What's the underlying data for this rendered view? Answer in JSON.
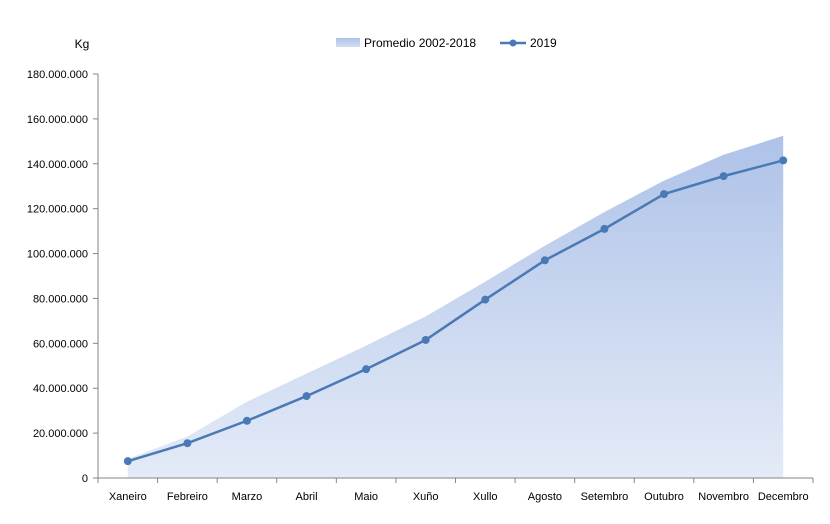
{
  "chart_data": {
    "type": "area",
    "ylabel": "Kg",
    "categories": [
      "Xaneiro",
      "Febreiro",
      "Marzo",
      "Abril",
      "Maio",
      "Xuño",
      "Xullo",
      "Agosto",
      "Setembro",
      "Outubro",
      "Novembro",
      "Decembro"
    ],
    "ylim": [
      0,
      180000000
    ],
    "yticks": [
      0,
      20000000,
      40000000,
      60000000,
      80000000,
      100000000,
      120000000,
      140000000,
      160000000,
      180000000
    ],
    "ytick_labels": [
      "0",
      "20.000.000",
      "40.000.000",
      "60.000.000",
      "80.000.000",
      "100.000.000",
      "120.000.000",
      "140.000.000",
      "160.000.000",
      "180.000.000"
    ],
    "legend_position": "top-center",
    "grid": false,
    "series": [
      {
        "name": "Promedio 2002-2018",
        "type": "area",
        "color": "#b4c7e7",
        "values": [
          8500000,
          18500000,
          34000000,
          46500000,
          59000000,
          72000000,
          87500000,
          103500000,
          118500000,
          132500000,
          144000000,
          152500000
        ]
      },
      {
        "name": "2019",
        "type": "line",
        "color": "#4a7ab5",
        "values": [
          7500000,
          15500000,
          25500000,
          36500000,
          48500000,
          61500000,
          79500000,
          97000000,
          111000000,
          126500000,
          134500000,
          141500000
        ]
      }
    ]
  }
}
